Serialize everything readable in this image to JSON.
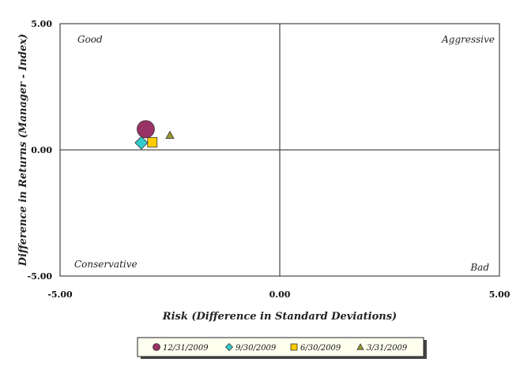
{
  "chart_data": {
    "type": "scatter",
    "xlabel": "Risk (Difference in Standard Deviations)",
    "ylabel": "Difference in Returns (Manager - Index)",
    "xlim": [
      -5,
      5
    ],
    "ylim": [
      -5,
      5
    ],
    "x_ticks": [
      "-5.00",
      "0.00",
      "5.00"
    ],
    "y_ticks": [
      "5.00",
      "0.00",
      "-5.00"
    ],
    "grid": false,
    "quadrant_labels": {
      "top_left": "Good",
      "top_right": "Aggressive",
      "bottom_left": "Conservative",
      "bottom_right": "Bad"
    },
    "legend_position": "bottom",
    "series": [
      {
        "name": "12/31/2009",
        "marker": "circle",
        "color": "#993366",
        "x": -3.05,
        "y": 0.82
      },
      {
        "name": "9/30/2009",
        "marker": "diamond",
        "color": "#33CCCC",
        "x": -3.15,
        "y": 0.28
      },
      {
        "name": "6/30/2009",
        "marker": "square",
        "color": "#FFCC00",
        "x": -2.9,
        "y": 0.3
      },
      {
        "name": "3/31/2009",
        "marker": "triangle",
        "color": "#999933",
        "x": -2.5,
        "y": 0.58
      }
    ]
  }
}
